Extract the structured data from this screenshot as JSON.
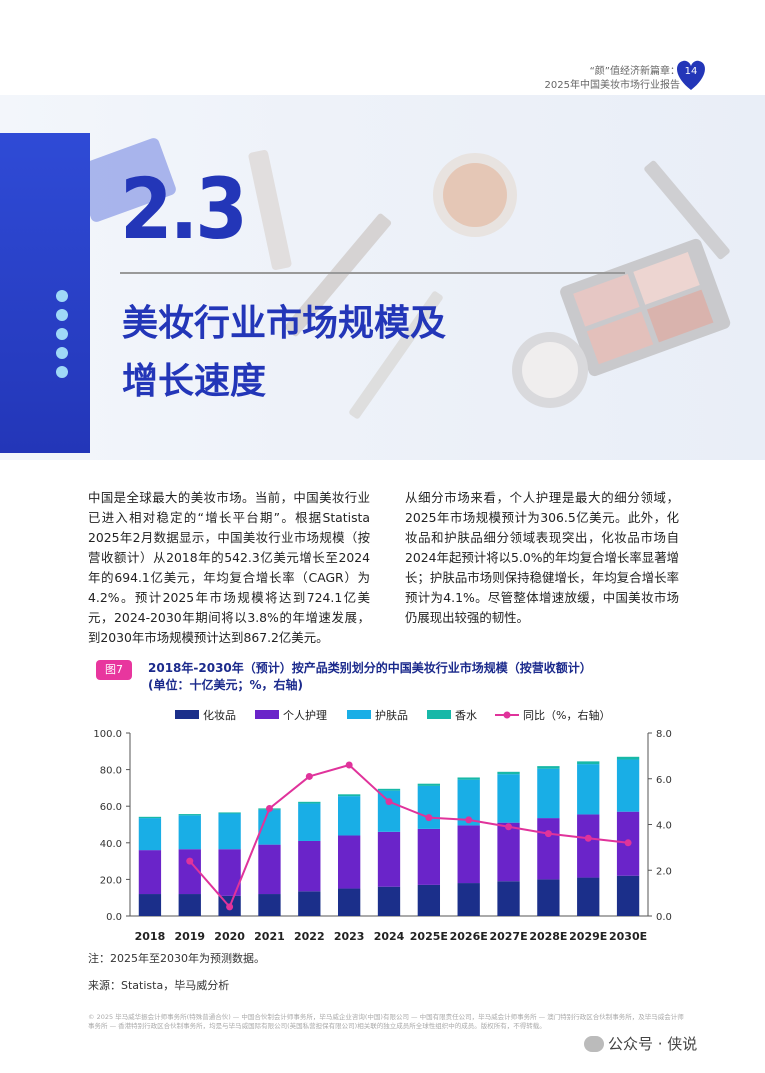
{
  "header": {
    "line1": "“颜”值经济新篇章：",
    "line2": "2025年中国美妆市场行业报告",
    "page_number": "14"
  },
  "section": {
    "number": "2.3",
    "title_line1": "美妆行业市场规模及",
    "title_line2": "增长速度"
  },
  "body": {
    "left_paragraph": "中国是全球最大的美妆市场。当前，中国美妆行业已进入相对稳定的“增长平台期”。根据Statista 2025年2月数据显示，中国美妆行业市场规模（按营收额计）从2018年的542.3亿美元增长至2024年的694.1亿美元，年均复合增长率（CAGR）为4.2%。预计2025年市场规模将达到724.1亿美元，2024-2030年期间将以3.8%的年增速发展，到2030年市场规模预计达到867.2亿美元。",
    "right_paragraph": "从细分市场来看，个人护理是最大的细分领域，2025年市场规模预计为306.5亿美元。此外，化妆品和护肤品细分领域表现突出，化妆品市场自2024年起预计将以5.0%的年均复合增长率显著增长；护肤品市场则保持稳健增长，年均复合增长率预计为4.1%。尽管整体增速放缓，中国美妆市场仍展现出较强的韧性。"
  },
  "figure": {
    "tag": "图7",
    "title_line1": "2018年-2030年（预计）按产品类别划分的中国美妆行业市场规模（按营收额计）",
    "title_line2": "(单位：十亿美元；%，右轴)"
  },
  "chart_data": {
    "type": "bar",
    "stacked": true,
    "categories": [
      "2018",
      "2019",
      "2020",
      "2021",
      "2022",
      "2023",
      "2024",
      "2025E",
      "2026E",
      "2027E",
      "2028E",
      "2029E",
      "2030E"
    ],
    "series": [
      {
        "name": "化妆品",
        "color": "#1b2f8a",
        "values": [
          12.0,
          12.0,
          11.0,
          12.0,
          13.5,
          15.0,
          16.0,
          17.0,
          18.0,
          19.0,
          20.0,
          21.0,
          22.0
        ]
      },
      {
        "name": "个人护理",
        "color": "#6a24c9",
        "values": [
          24.0,
          24.5,
          25.5,
          27.0,
          27.5,
          29.0,
          30.0,
          30.6,
          31.5,
          32.0,
          33.5,
          34.5,
          35.0
        ]
      },
      {
        "name": "护肤品",
        "color": "#19aee6",
        "values": [
          17.5,
          18.5,
          19.5,
          19.0,
          20.5,
          21.5,
          22.5,
          23.5,
          25.0,
          26.5,
          27.0,
          27.5,
          28.5
        ]
      },
      {
        "name": "香水",
        "color": "#17b8a8",
        "values": [
          0.7,
          0.7,
          0.6,
          0.8,
          0.9,
          1.0,
          1.0,
          1.2,
          1.2,
          1.3,
          1.4,
          1.5,
          1.5
        ]
      }
    ],
    "line_series": {
      "name": "同比（%，右轴）",
      "color": "#e0339b",
      "axis": "right",
      "values": [
        null,
        2.4,
        0.4,
        4.7,
        6.1,
        6.6,
        5.0,
        4.3,
        4.2,
        3.9,
        3.6,
        3.4,
        3.2
      ]
    },
    "ylim_left": [
      0,
      100
    ],
    "yticks_left": [
      "0.0",
      "20.0",
      "40.0",
      "60.0",
      "80.0",
      "100.0"
    ],
    "ylim_right": [
      0,
      8
    ],
    "yticks_right": [
      "0.0",
      "2.0",
      "4.0",
      "6.0",
      "8.0"
    ],
    "legend_position": "top",
    "grid": false
  },
  "notes": {
    "note": "注：2025年至2030年为预测数据。",
    "source": "来源：Statista，毕马威分析"
  },
  "footer": {
    "text": "© 2025 毕马威华振会计师事务所(特殊普通合伙) — 中国合伙制会计师事务所，毕马威企业咨询(中国)有限公司 — 中国有限责任公司，毕马威会计师事务所 — 澳门特别行政区合伙制事务所，及毕马威会计师事务所 — 香港特别行政区合伙制事务所，均是与毕马威国际有限公司(英国私营担保有限公司)相关联的独立成员所全球性组织中的成员。版权所有，不得转载。",
    "wechat_label": "公众号 · 侠说"
  },
  "colors": {
    "brand_blue": "#2336b8",
    "accent_pink": "#e8369e"
  }
}
